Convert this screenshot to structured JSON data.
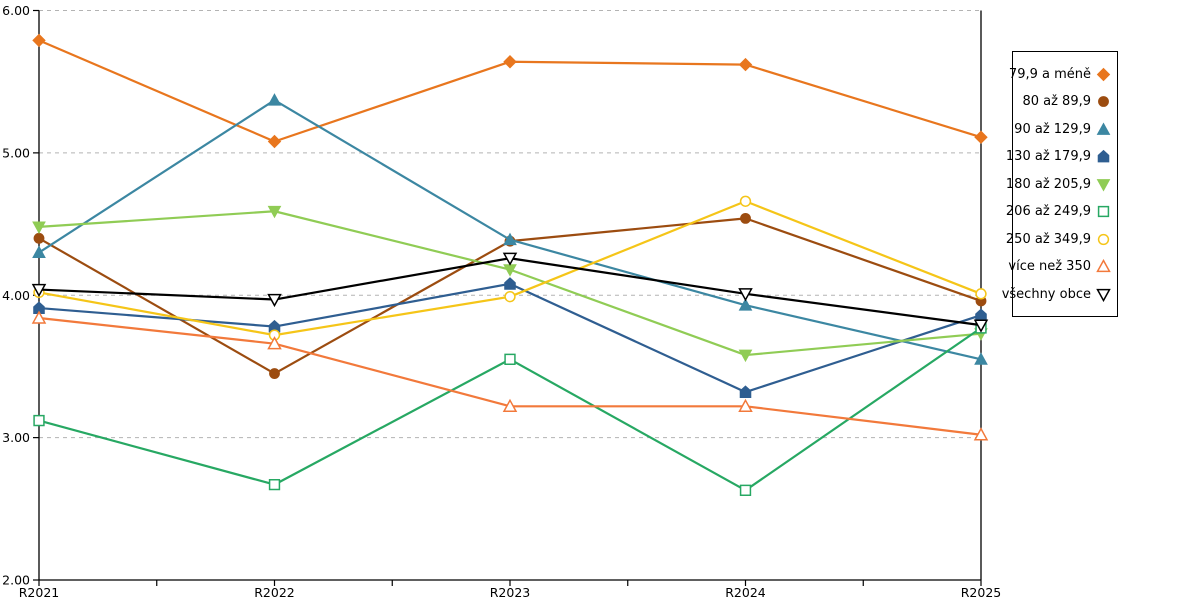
{
  "chart_data": {
    "type": "line",
    "title": "",
    "xlabel": "",
    "ylabel": "",
    "x_categories": [
      "R2021",
      "R2022",
      "R2023",
      "R2024",
      "R2025"
    ],
    "ylim": [
      2,
      6
    ],
    "y_tick_labels": [
      "6.00",
      "5.00",
      "4.00",
      "3.00",
      "2.00"
    ],
    "y_tick_values": [
      6,
      5,
      4,
      3,
      2
    ],
    "grid": "horizontal-dashed",
    "gridline_color": "#b3b3b3",
    "axis_color": "#000000",
    "legend_position": "right-outside",
    "series": [
      {
        "name": "79,9 a méně",
        "color": "#e8761e",
        "marker": "diamond",
        "filled": true,
        "values": [
          5.79,
          5.08,
          5.64,
          5.62,
          5.11
        ]
      },
      {
        "name": "80 až 89,9",
        "color": "#9c4c10",
        "marker": "circle",
        "filled": true,
        "values": [
          4.4,
          3.45,
          4.38,
          4.54,
          3.96
        ]
      },
      {
        "name": "90 až 129,9",
        "color": "#3c87a2",
        "marker": "triangle-up",
        "filled": true,
        "values": [
          4.3,
          5.37,
          4.39,
          3.93,
          3.55
        ]
      },
      {
        "name": "130 až 179,9",
        "color": "#2f5e91",
        "marker": "pentagon",
        "filled": true,
        "values": [
          3.91,
          3.78,
          4.08,
          3.32,
          3.86
        ]
      },
      {
        "name": "180 až 205,9",
        "color": "#90cc55",
        "marker": "triangle-down",
        "filled": true,
        "values": [
          4.48,
          4.59,
          4.18,
          3.58,
          3.73
        ]
      },
      {
        "name": "206 až 249,9",
        "color": "#27a863",
        "marker": "square",
        "filled": false,
        "values": [
          3.12,
          2.67,
          3.55,
          2.63,
          3.77
        ]
      },
      {
        "name": "250 až 349,9",
        "color": "#f5c518",
        "marker": "circle",
        "filled": false,
        "values": [
          4.02,
          3.72,
          3.99,
          4.66,
          4.01
        ]
      },
      {
        "name": "více než 350",
        "color": "#f2793b",
        "marker": "triangle-up",
        "filled": false,
        "values": [
          3.84,
          3.66,
          3.22,
          3.22,
          3.02
        ]
      },
      {
        "name": "všechny obce",
        "color": "#000000",
        "marker": "triangle-down",
        "filled": false,
        "values": [
          4.04,
          3.97,
          4.26,
          4.01,
          3.79
        ]
      }
    ]
  }
}
